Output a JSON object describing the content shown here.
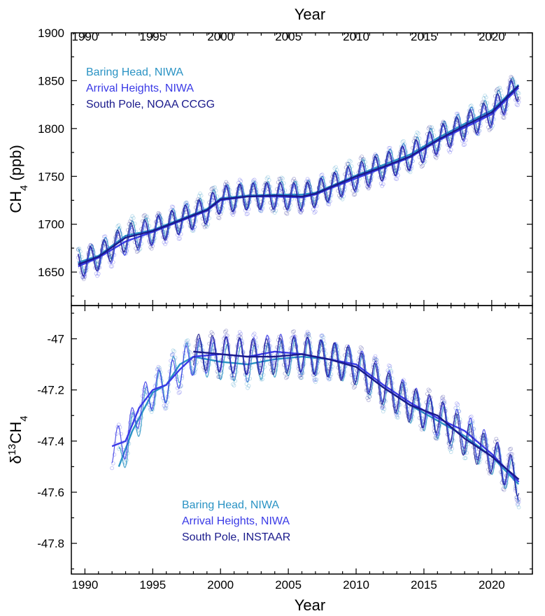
{
  "figure": {
    "top_axis_title": "Year",
    "bottom_axis_title": "Year"
  },
  "colors": {
    "baring_head": "#2a93c4",
    "arrival_heights": "#3a3ae6",
    "south_pole": "#1a1a8c"
  },
  "chart_data": [
    {
      "type": "line",
      "ylabel_main": "CH",
      "ylabel_sub": "4",
      "ylabel_unit": " (ppb)",
      "x_label": "Year",
      "xlim": [
        1989,
        2023
      ],
      "ylim": [
        1615,
        1900
      ],
      "x_ticks": [
        1990,
        1995,
        2000,
        2005,
        2010,
        2015,
        2020
      ],
      "y_ticks": [
        1650,
        1700,
        1750,
        1800,
        1850,
        1900
      ],
      "legend_position": "top-left",
      "seasonal_amplitude": 14,
      "series": [
        {
          "name": "Baring Head, NIWA",
          "color_key": "baring_head",
          "x": [
            1989.5,
            1991,
            1993,
            1995,
            1997,
            1999,
            2000,
            2002,
            2004,
            2006,
            2007,
            2008,
            2010,
            2012,
            2014,
            2016,
            2018,
            2020,
            2022
          ],
          "y": [
            1660,
            1667,
            1688,
            1694,
            1705,
            1716,
            1727,
            1730,
            1731,
            1731,
            1733,
            1739,
            1751,
            1762,
            1773,
            1790,
            1805,
            1819,
            1846
          ]
        },
        {
          "name": "Arrival Heights, NIWA",
          "color_key": "arrival_heights",
          "x": [
            1989.5,
            1991,
            1993,
            1995,
            1997,
            1999,
            2000,
            2002,
            2004,
            2006,
            2007,
            2008,
            2010,
            2012,
            2014,
            2016,
            2018,
            2020,
            2022
          ],
          "y": [
            1656,
            1665,
            1682,
            1692,
            1703,
            1714,
            1725,
            1729,
            1729,
            1728,
            1731,
            1737,
            1748,
            1759,
            1770,
            1787,
            1801,
            1815,
            1843
          ]
        },
        {
          "name": "South Pole, NOAA CCGG",
          "color_key": "south_pole",
          "x": [
            1989.5,
            1991,
            1993,
            1995,
            1997,
            1999,
            2000,
            2002,
            2004,
            2006,
            2007,
            2008,
            2010,
            2012,
            2014,
            2016,
            2018,
            2020,
            2022
          ],
          "y": [
            1658,
            1666,
            1686,
            1693,
            1704,
            1715,
            1726,
            1729,
            1730,
            1729,
            1732,
            1738,
            1750,
            1760,
            1771,
            1788,
            1803,
            1817,
            1845
          ]
        }
      ]
    },
    {
      "type": "line",
      "ylabel_pre": "δ",
      "ylabel_sup": "13",
      "ylabel_main": "CH",
      "ylabel_sub": "4",
      "x_label": "Year",
      "xlim": [
        1989,
        2023
      ],
      "ylim": [
        -47.92,
        -46.87
      ],
      "x_ticks": [
        1990,
        1995,
        2000,
        2005,
        2010,
        2015,
        2020
      ],
      "y_ticks": [
        -47.8,
        -47.6,
        -47.4,
        -47.2,
        -47
      ],
      "legend_position": "bottom-left",
      "seasonal_amplitude": 0.07,
      "series": [
        {
          "name": "Baring Head, NIWA",
          "color_key": "baring_head",
          "x": [
            1992.5,
            1993.5,
            1995,
            1996,
            1997,
            1998,
            2000,
            2002,
            2004,
            2006,
            2008,
            2010,
            2012,
            2014,
            2016,
            2018,
            2020,
            2022
          ],
          "y": [
            -47.5,
            -47.36,
            -47.21,
            -47.18,
            -47.1,
            -47.07,
            -47.09,
            -47.1,
            -47.08,
            -47.07,
            -47.08,
            -47.11,
            -47.19,
            -47.26,
            -47.32,
            -47.38,
            -47.46,
            -47.57
          ]
        },
        {
          "name": "Arrival Heights, NIWA",
          "color_key": "arrival_heights",
          "x": [
            1992,
            1993,
            1994,
            1995,
            1996,
            1997,
            1998,
            2000,
            2002,
            2004,
            2006,
            2008,
            2010,
            2012,
            2014,
            2016,
            2018,
            2020,
            2022
          ],
          "y": [
            -47.42,
            -47.4,
            -47.27,
            -47.2,
            -47.18,
            -47.12,
            -47.07,
            -47.06,
            -47.07,
            -47.05,
            -47.06,
            -47.08,
            -47.1,
            -47.18,
            -47.25,
            -47.31,
            -47.36,
            -47.45,
            -47.56
          ]
        },
        {
          "name": "South Pole, INSTAAR",
          "color_key": "south_pole",
          "x": [
            1998,
            2000,
            2002,
            2004,
            2006,
            2008,
            2010,
            2012,
            2014,
            2016,
            2018,
            2020,
            2022
          ],
          "y": [
            -47.05,
            -47.06,
            -47.07,
            -47.07,
            -47.06,
            -47.08,
            -47.11,
            -47.19,
            -47.26,
            -47.3,
            -47.39,
            -47.46,
            -47.55
          ]
        }
      ]
    }
  ]
}
